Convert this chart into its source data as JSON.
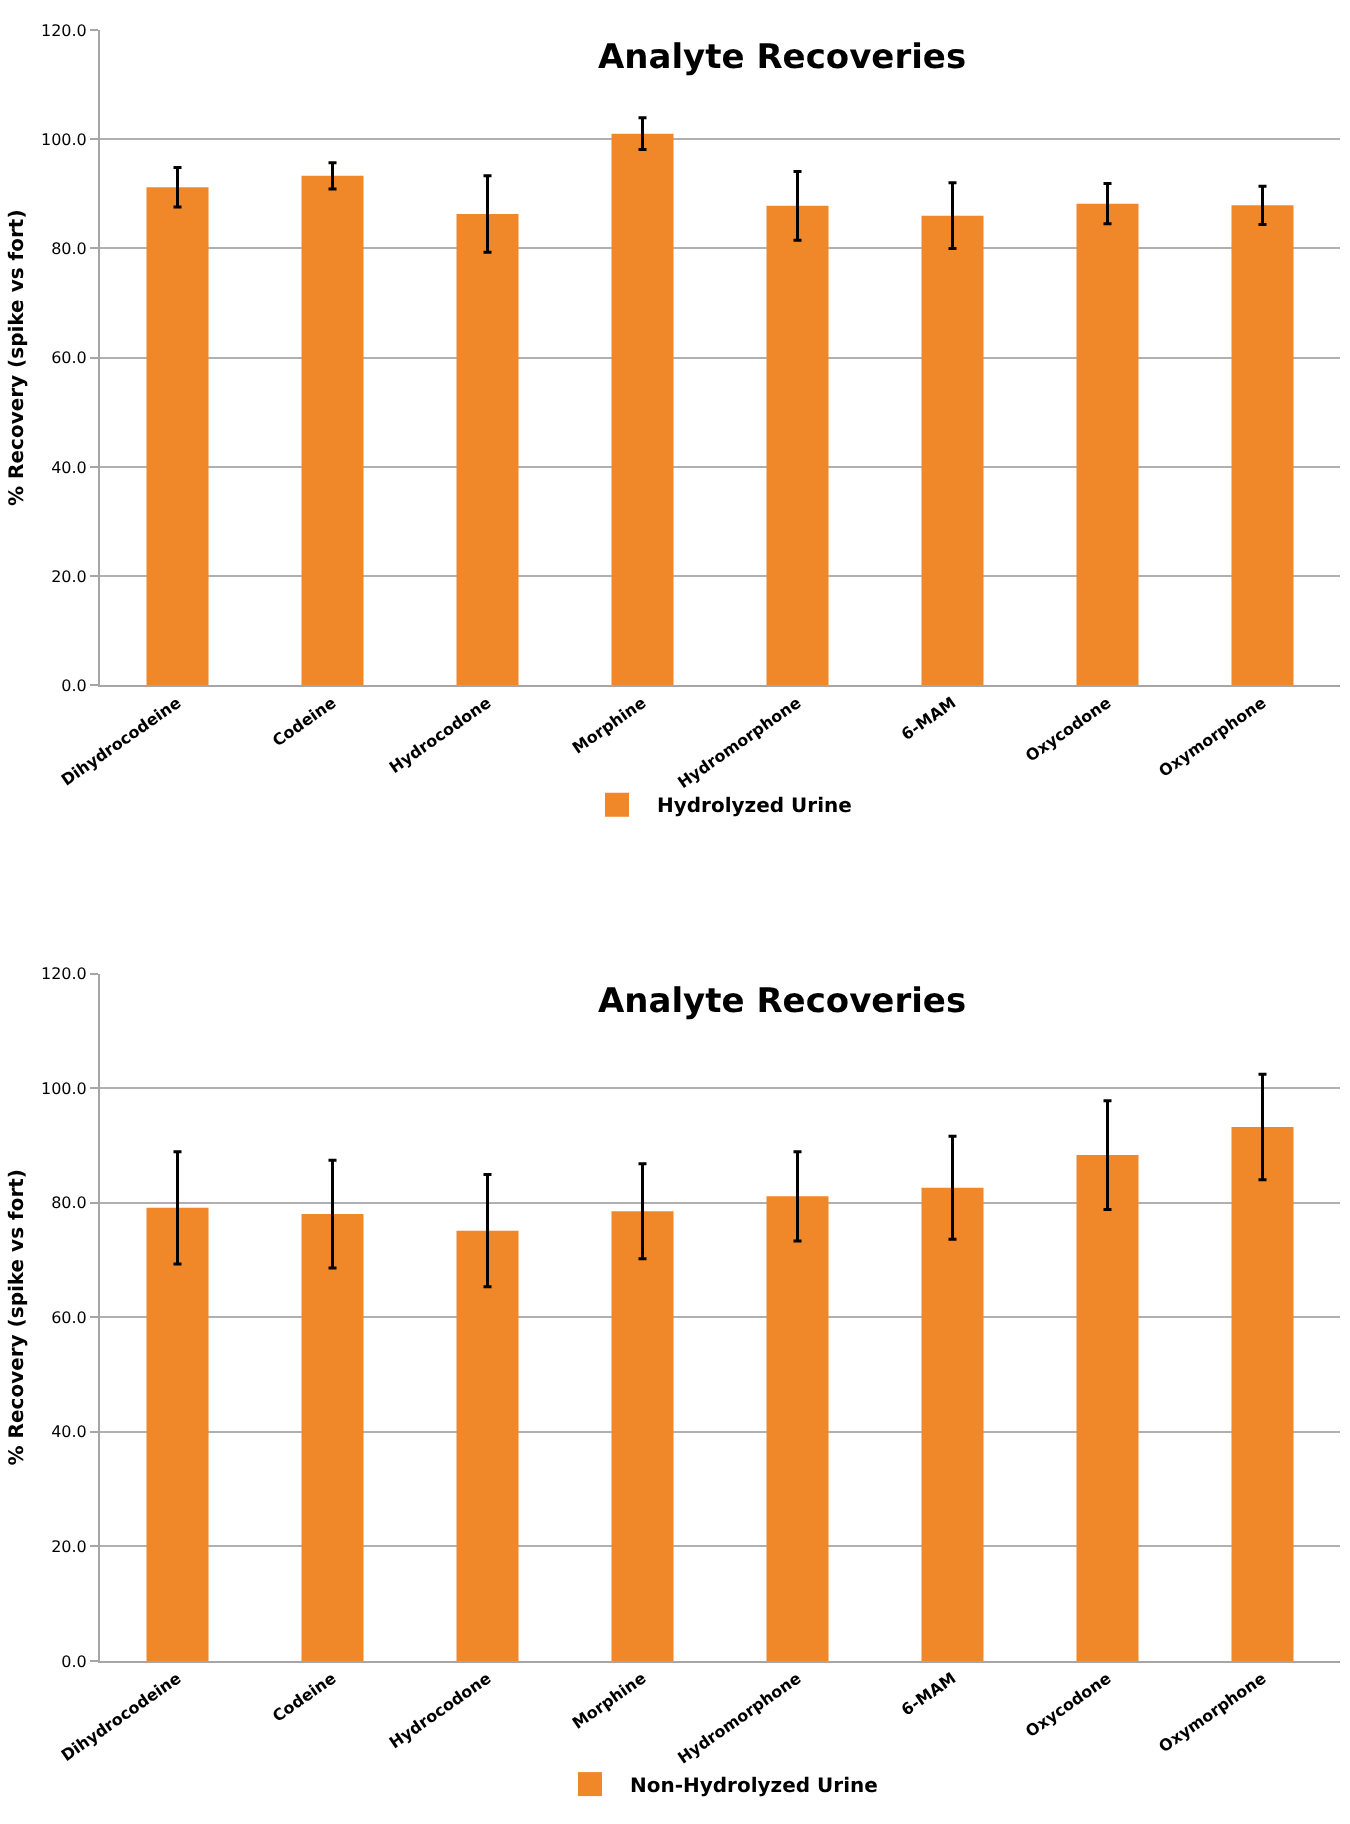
{
  "chart_data": [
    {
      "type": "bar",
      "title": "Analyte Recoveries",
      "ylabel": "% Recovery (spike vs fort)",
      "categories": [
        "Dihydrocodeine",
        "Codeine",
        "Hydrocodone",
        "Morphine",
        "Hydromorphone",
        "6-MAM",
        "Oxycodone",
        "Oxymorphone"
      ],
      "series": [
        {
          "name": "Hydrolyzed Urine",
          "color": "#f0882a",
          "values": [
            91.2,
            93.3,
            86.3,
            101.0,
            87.8,
            86.0,
            88.2,
            87.9
          ],
          "errors": [
            3.6,
            2.4,
            7.0,
            2.9,
            6.3,
            6.0,
            3.7,
            3.5
          ]
        }
      ],
      "ylim": [
        0,
        120
      ],
      "yticks": [
        {
          "value": 0,
          "label": "0.0"
        },
        {
          "value": 20,
          "label": "20.0"
        },
        {
          "value": 40,
          "label": "40.0"
        },
        {
          "value": 60,
          "label": "60.0"
        },
        {
          "value": 80,
          "label": "80.0"
        },
        {
          "value": 100,
          "label": "100.0"
        },
        {
          "value": 120,
          "label": "120.0"
        }
      ],
      "grid": "y",
      "legend": "bottom"
    },
    {
      "type": "bar",
      "title": "Analyte Recoveries",
      "ylabel": "% Recovery (spike vs fort)",
      "categories": [
        "Dihydrocodeine",
        "Codeine",
        "Hydrocodone",
        "Morphine",
        "Hydromorphone",
        "6-MAM",
        "Oxycodone",
        "Oxymorphone"
      ],
      "series": [
        {
          "name": "Non-Hydrolyzed Urine",
          "color": "#f0882a",
          "values": [
            79.1,
            78.0,
            75.1,
            78.5,
            81.1,
            82.6,
            88.3,
            93.2
          ],
          "errors": [
            9.8,
            9.4,
            9.8,
            8.3,
            7.8,
            9.0,
            9.5,
            9.2
          ]
        }
      ],
      "ylim": [
        0,
        120
      ],
      "yticks": [
        {
          "value": 0,
          "label": "0.0"
        },
        {
          "value": 20,
          "label": "20.0"
        },
        {
          "value": 40,
          "label": "40.0"
        },
        {
          "value": 60,
          "label": "60.0"
        },
        {
          "value": 80,
          "label": "80.0"
        },
        {
          "value": 100,
          "label": "100.0"
        },
        {
          "value": 120,
          "label": "120.0"
        }
      ],
      "grid": "y",
      "legend": "bottom"
    }
  ]
}
